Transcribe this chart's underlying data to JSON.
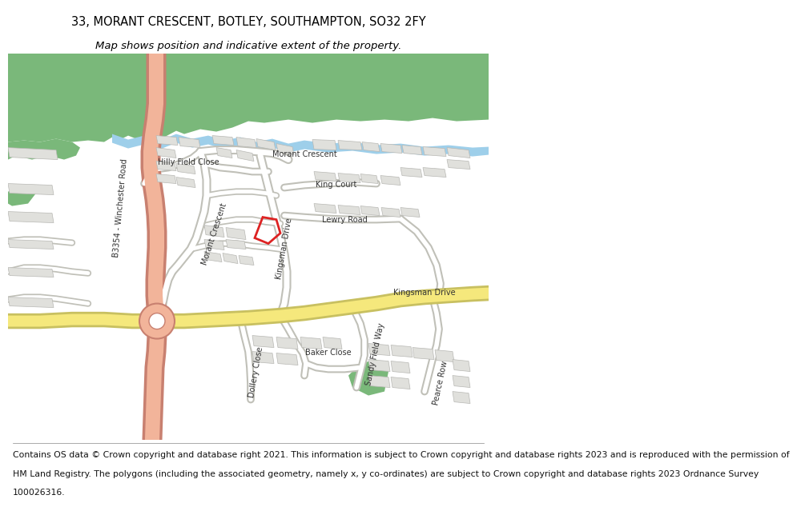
{
  "title_line1": "33, MORANT CRESCENT, BOTLEY, SOUTHAMPTON, SO32 2FY",
  "title_line2": "Map shows position and indicative extent of the property.",
  "footer_lines": [
    "Contains OS data © Crown copyright and database right 2021. This information is subject to Crown copyright and database rights 2023 and is reproduced with the permission of",
    "HM Land Registry. The polygons (including the associated geometry, namely x, y co-ordinates) are subject to Crown copyright and database rights 2023 Ordnance Survey",
    "100026316."
  ],
  "title_fontsize": 10.5,
  "subtitle_fontsize": 9.5,
  "footer_fontsize": 7.8,
  "map_bg": "#f5f5f0",
  "green_color": "#7ab87a",
  "river_color": "#9ecfea",
  "road_pink_color": "#f2b49a",
  "road_pink_edge": "#c88070",
  "road_yellow_color": "#f5e87c",
  "road_yellow_edge": "#c8c060",
  "road_white_color": "#ffffff",
  "road_grey_edge": "#c0c0b8",
  "building_fill": "#e0e0dc",
  "building_edge": "#b8b8b4",
  "highlight_color": "#dd2222",
  "highlight_fill": "none"
}
